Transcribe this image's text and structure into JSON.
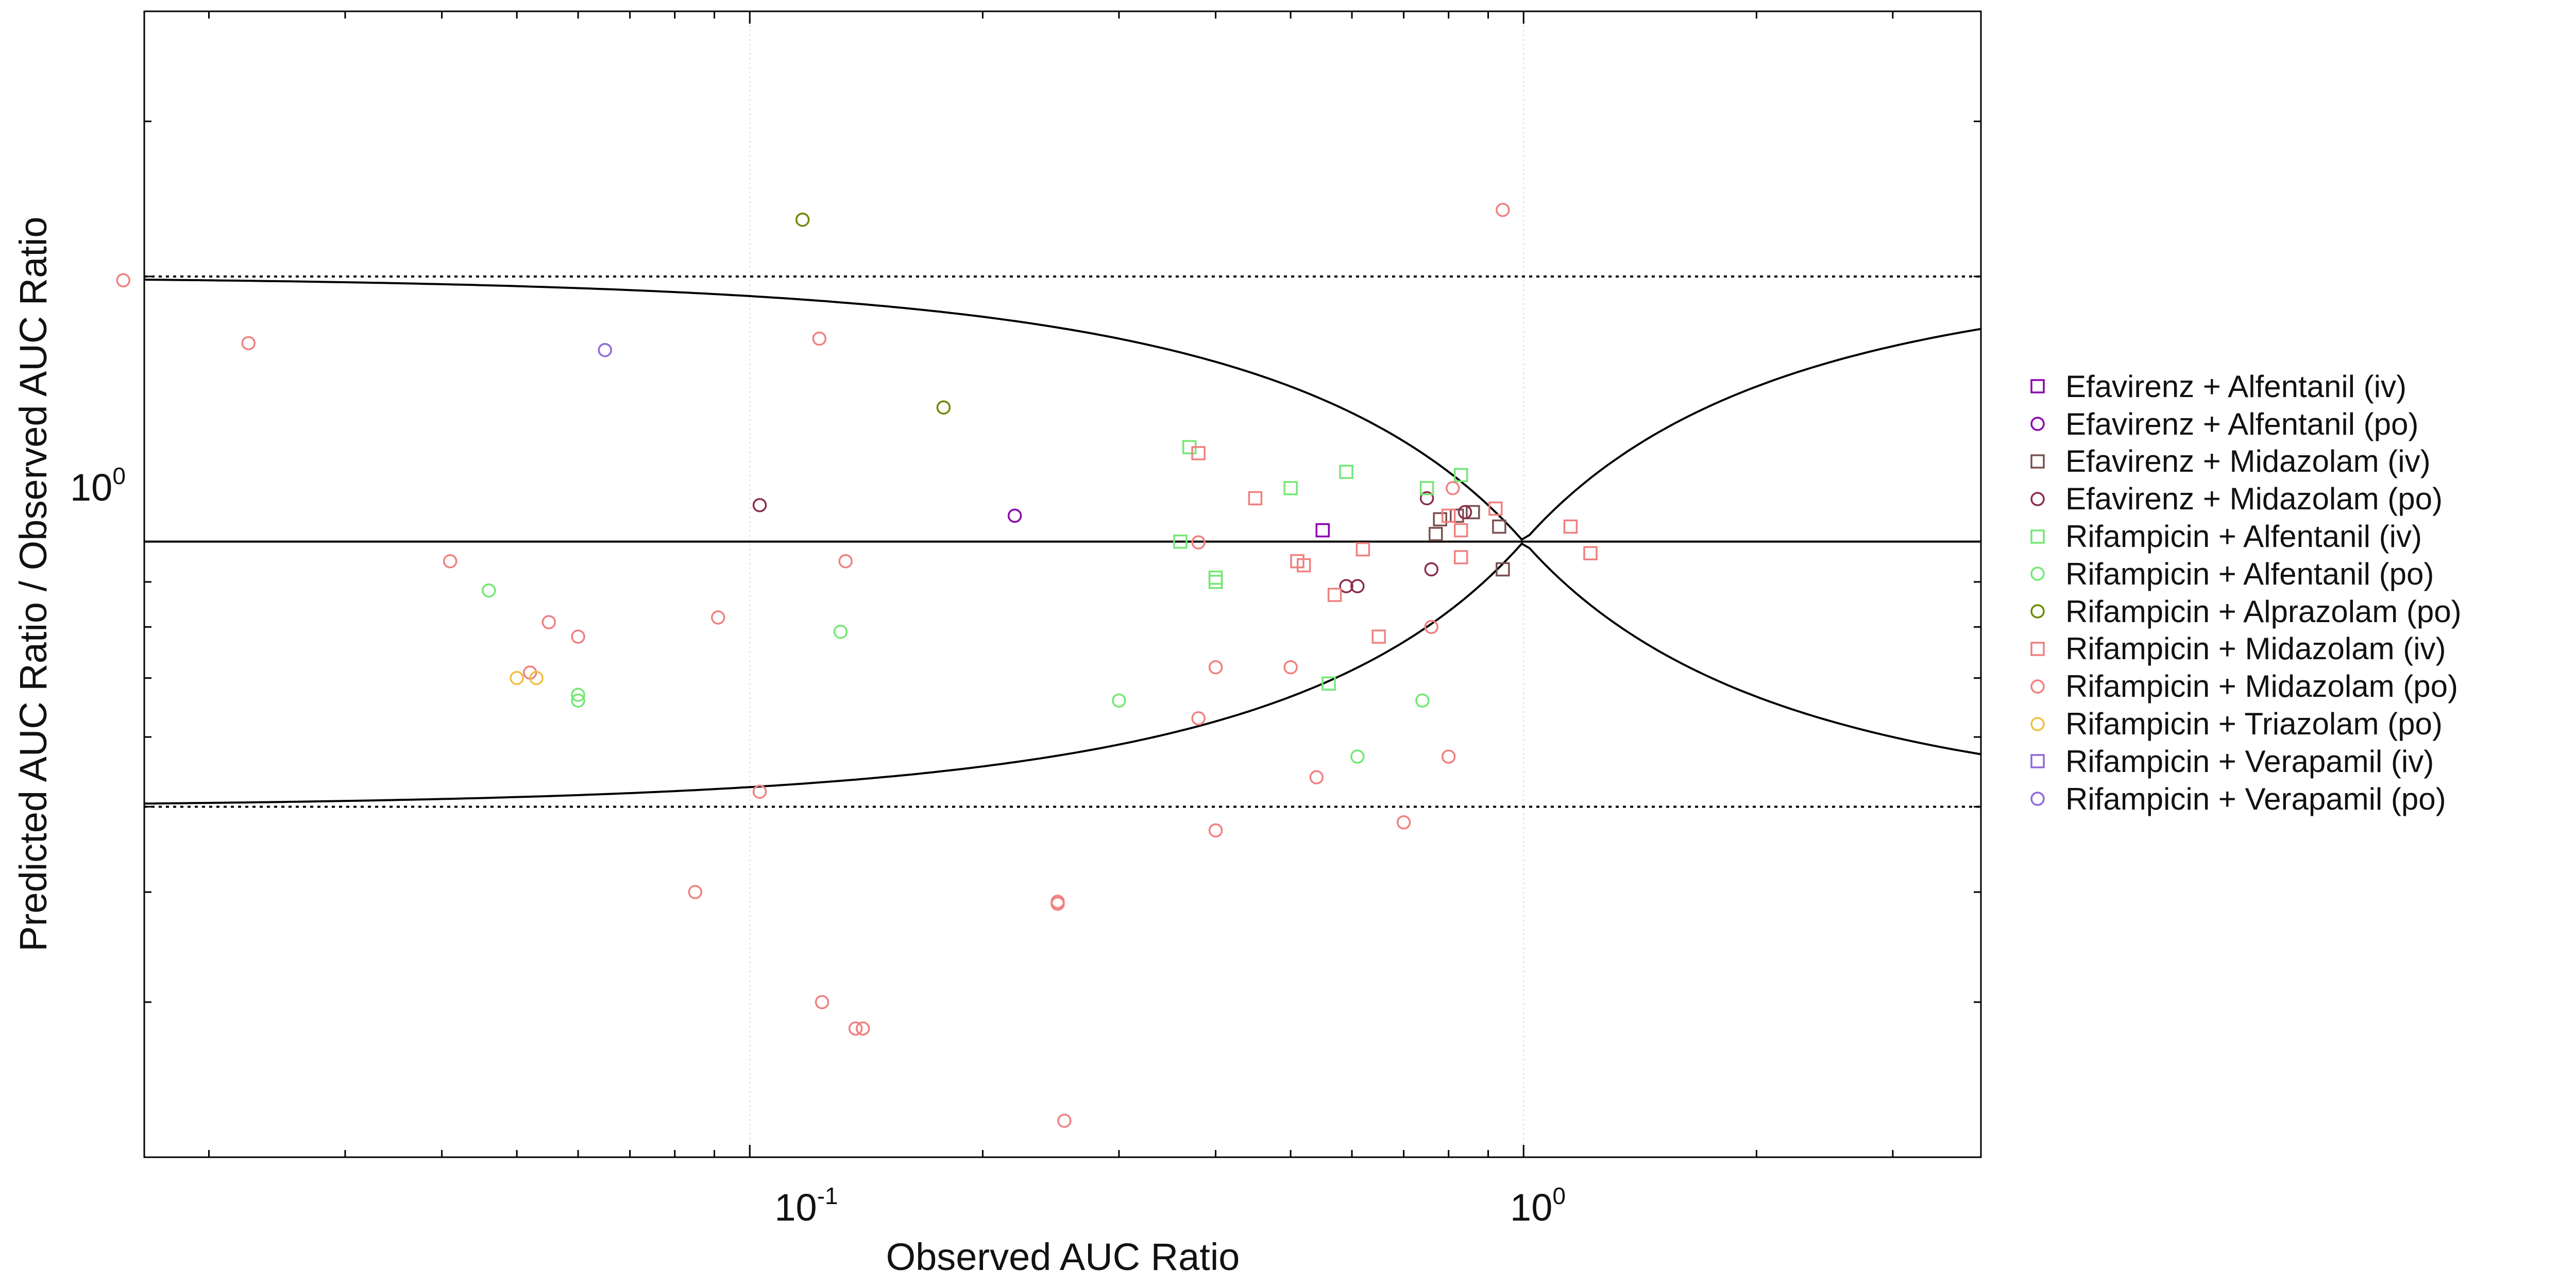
{
  "chart_data": {
    "type": "scatter",
    "title": "",
    "xlabel": "Observed AUC Ratio",
    "ylabel": "Predicted AUC Ratio / Observed AUC Ratio",
    "x_scale": "log",
    "y_scale": "log",
    "xlim": [
      0.0165,
      3.9
    ],
    "ylim": [
      0.2,
      4.0
    ],
    "x_major_tick_labels": [
      "10",
      "10"
    ],
    "x_major_tick_exponents": [
      "-1",
      "0"
    ],
    "y_major_tick_labels": [
      "10"
    ],
    "y_major_tick_exponents": [
      "0"
    ],
    "grid": "major vertical lines (light dotted)",
    "reference_lines": {
      "identity": 1.0,
      "fold_bounds": [
        0.5,
        2.0
      ],
      "guest_limit_curves": true
    },
    "legend_position": "right",
    "series": [
      {
        "name": "Efavirenz + Alfentanil (iv)",
        "marker": "square",
        "color": "#8b00b0",
        "points": [
          [
            0.55,
            1.03
          ]
        ]
      },
      {
        "name": "Efavirenz + Alfentanil (po)",
        "marker": "circle",
        "color": "#8b00b0",
        "points": [
          [
            0.22,
            1.07
          ]
        ]
      },
      {
        "name": "Efavirenz + Midazolam (iv)",
        "marker": "square",
        "color": "#7a5050",
        "points": [
          [
            0.78,
            1.06
          ],
          [
            0.82,
            1.07
          ],
          [
            0.86,
            1.08
          ],
          [
            0.93,
            1.04
          ],
          [
            0.94,
            0.93
          ],
          [
            0.77,
            1.02
          ]
        ]
      },
      {
        "name": "Efavirenz + Midazolam (po)",
        "marker": "circle",
        "color": "#8b2c4c",
        "points": [
          [
            0.103,
            1.1
          ],
          [
            0.59,
            0.89
          ],
          [
            0.61,
            0.89
          ],
          [
            0.76,
            0.93
          ],
          [
            0.75,
            1.12
          ],
          [
            0.84,
            1.08
          ]
        ]
      },
      {
        "name": "Rifampicin + Alfentanil (iv)",
        "marker": "square",
        "color": "#74e874",
        "points": [
          [
            0.37,
            1.28
          ],
          [
            0.5,
            1.15
          ],
          [
            0.59,
            1.2
          ],
          [
            0.75,
            1.15
          ],
          [
            0.83,
            1.19
          ],
          [
            0.4,
            0.91
          ],
          [
            0.4,
            0.9
          ],
          [
            0.36,
            1.0
          ],
          [
            0.56,
            0.69
          ]
        ]
      },
      {
        "name": "Rifampicin + Alfentanil (po)",
        "marker": "circle",
        "color": "#74e874",
        "points": [
          [
            0.046,
            0.88
          ],
          [
            0.06,
            0.67
          ],
          [
            0.06,
            0.66
          ],
          [
            0.131,
            0.79
          ],
          [
            0.3,
            0.66
          ],
          [
            0.61,
            0.57
          ],
          [
            0.74,
            0.66
          ]
        ]
      },
      {
        "name": "Rifampicin + Alprazolam (po)",
        "marker": "circle",
        "color": "#6a8a00",
        "points": [
          [
            0.117,
            2.32
          ],
          [
            0.178,
            1.42
          ]
        ]
      },
      {
        "name": "Rifampicin + Midazolam (iv)",
        "marker": "square",
        "color": "#f08080",
        "points": [
          [
            0.38,
            1.26
          ],
          [
            0.45,
            1.12
          ],
          [
            0.51,
            0.95
          ],
          [
            0.52,
            0.94
          ],
          [
            0.57,
            0.87
          ],
          [
            0.62,
            0.98
          ],
          [
            0.65,
            0.78
          ],
          [
            0.8,
            1.07
          ],
          [
            0.83,
            0.96
          ],
          [
            0.83,
            1.03
          ],
          [
            0.92,
            1.09
          ],
          [
            1.15,
            1.04
          ],
          [
            1.22,
            0.97
          ]
        ]
      },
      {
        "name": "Rifampicin + Midazolam (po)",
        "marker": "circle",
        "color": "#f08080",
        "points": [
          [
            0.0155,
            1.98
          ],
          [
            0.0225,
            1.68
          ],
          [
            0.041,
            0.95
          ],
          [
            0.055,
            0.81
          ],
          [
            0.06,
            0.78
          ],
          [
            0.052,
            0.71
          ],
          [
            0.091,
            0.82
          ],
          [
            0.103,
            0.52
          ],
          [
            0.085,
            0.4
          ],
          [
            0.133,
            0.95
          ],
          [
            0.123,
            1.7
          ],
          [
            0.124,
            0.3
          ],
          [
            0.137,
            0.28
          ],
          [
            0.14,
            0.28
          ],
          [
            0.25,
            0.39
          ],
          [
            0.25,
            0.388
          ],
          [
            0.255,
            0.22
          ],
          [
            0.38,
            0.998
          ],
          [
            0.38,
            0.63
          ],
          [
            0.4,
            0.72
          ],
          [
            0.4,
            0.47
          ],
          [
            0.5,
            0.72
          ],
          [
            0.54,
            0.54
          ],
          [
            0.7,
            0.48
          ],
          [
            0.76,
            0.8
          ],
          [
            0.8,
            0.57
          ],
          [
            0.81,
            1.15
          ],
          [
            0.94,
            2.38
          ]
        ]
      },
      {
        "name": "Rifampicin + Triazolam (po)",
        "marker": "circle",
        "color": "#f0c040",
        "points": [
          [
            0.05,
            0.7
          ],
          [
            0.053,
            0.7
          ]
        ]
      },
      {
        "name": "Rifampicin + Verapamil (iv)",
        "marker": "square",
        "color": "#8f6ad8",
        "points": []
      },
      {
        "name": "Rifampicin + Verapamil (po)",
        "marker": "circle",
        "color": "#8f6ad8",
        "points": [
          [
            0.065,
            1.65
          ]
        ]
      }
    ]
  },
  "legend": {
    "items": [
      {
        "label": "Efavirenz + Alfentanil (iv)",
        "marker": "square",
        "color": "#8b00b0"
      },
      {
        "label": "Efavirenz + Alfentanil (po)",
        "marker": "circle",
        "color": "#8b00b0"
      },
      {
        "label": "Efavirenz + Midazolam (iv)",
        "marker": "square",
        "color": "#7a5050"
      },
      {
        "label": "Efavirenz + Midazolam (po)",
        "marker": "circle",
        "color": "#8b2c4c"
      },
      {
        "label": "Rifampicin + Alfentanil (iv)",
        "marker": "square",
        "color": "#74e874"
      },
      {
        "label": "Rifampicin + Alfentanil (po)",
        "marker": "circle",
        "color": "#74e874"
      },
      {
        "label": "Rifampicin + Alprazolam (po)",
        "marker": "circle",
        "color": "#6a8a00"
      },
      {
        "label": "Rifampicin + Midazolam (iv)",
        "marker": "square",
        "color": "#f08080"
      },
      {
        "label": "Rifampicin + Midazolam (po)",
        "marker": "circle",
        "color": "#f08080"
      },
      {
        "label": "Rifampicin + Triazolam (po)",
        "marker": "circle",
        "color": "#f0c040"
      },
      {
        "label": "Rifampicin + Verapamil (iv)",
        "marker": "square",
        "color": "#8f6ad8"
      },
      {
        "label": "Rifampicin + Verapamil (po)",
        "marker": "circle",
        "color": "#8f6ad8"
      }
    ]
  }
}
